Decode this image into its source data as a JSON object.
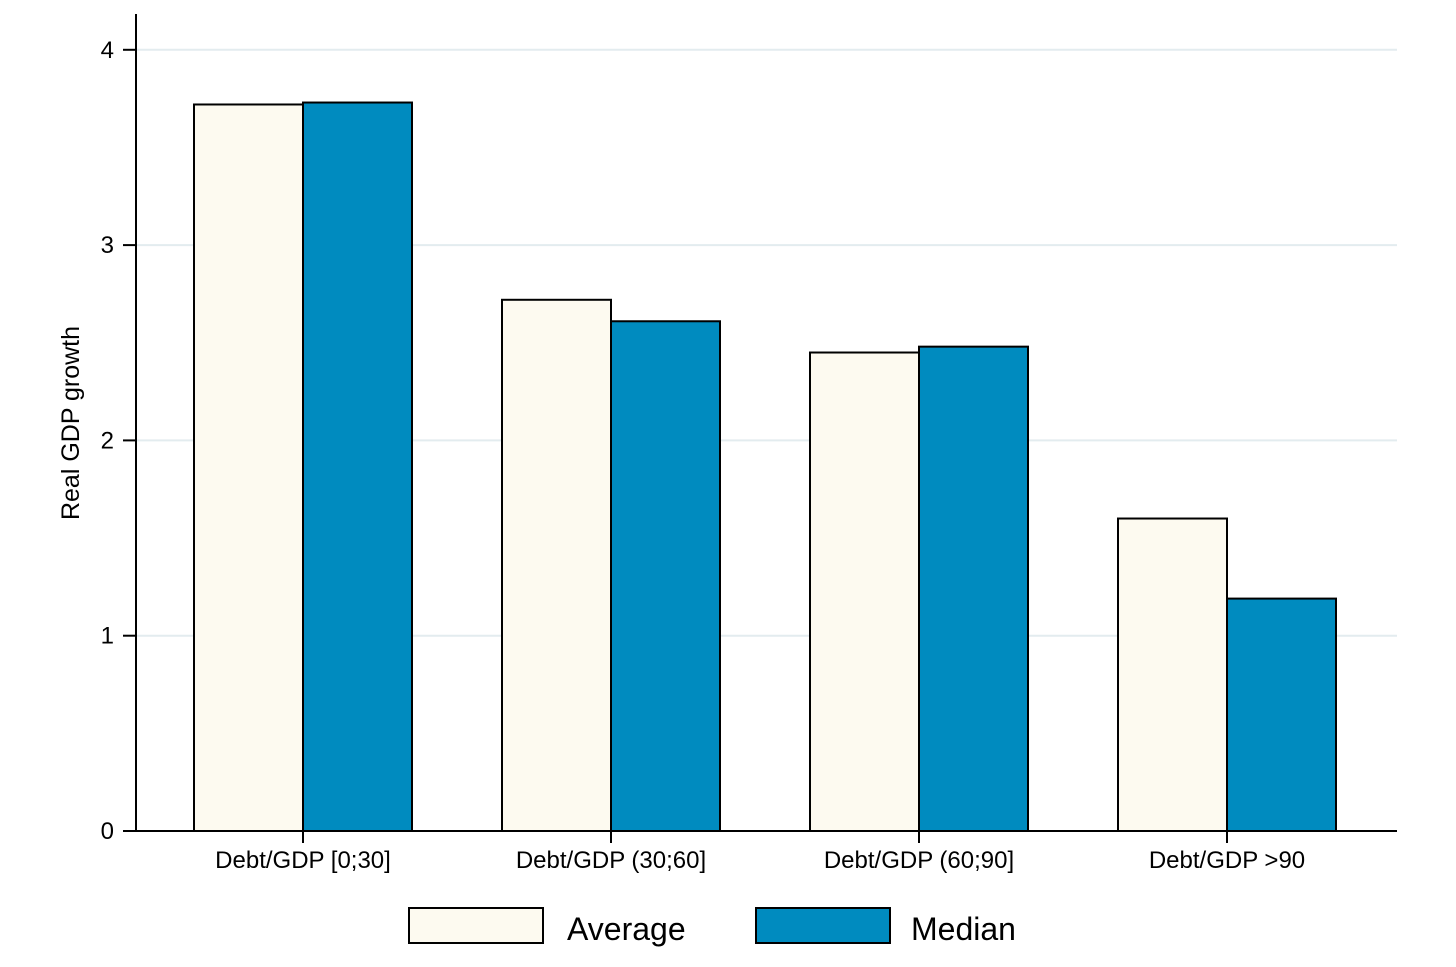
{
  "chart_data": {
    "type": "bar",
    "categories": [
      "Debt/GDP [0;30]",
      "Debt/GDP (30;60]",
      "Debt/GDP (60;90]",
      "Debt/GDP >90"
    ],
    "series": [
      {
        "name": "Average",
        "values": [
          3.72,
          2.72,
          2.45,
          1.6
        ],
        "color": "#fdfaf0"
      },
      {
        "name": "Median",
        "values": [
          3.73,
          2.61,
          2.48,
          1.19
        ],
        "color": "#008bbf"
      }
    ],
    "title": "",
    "xlabel": "",
    "ylabel": "Real GDP growth",
    "ylim": [
      0,
      4
    ],
    "yticks": [
      0,
      1,
      2,
      3,
      4
    ],
    "grid": true,
    "legend_position": "bottom"
  }
}
